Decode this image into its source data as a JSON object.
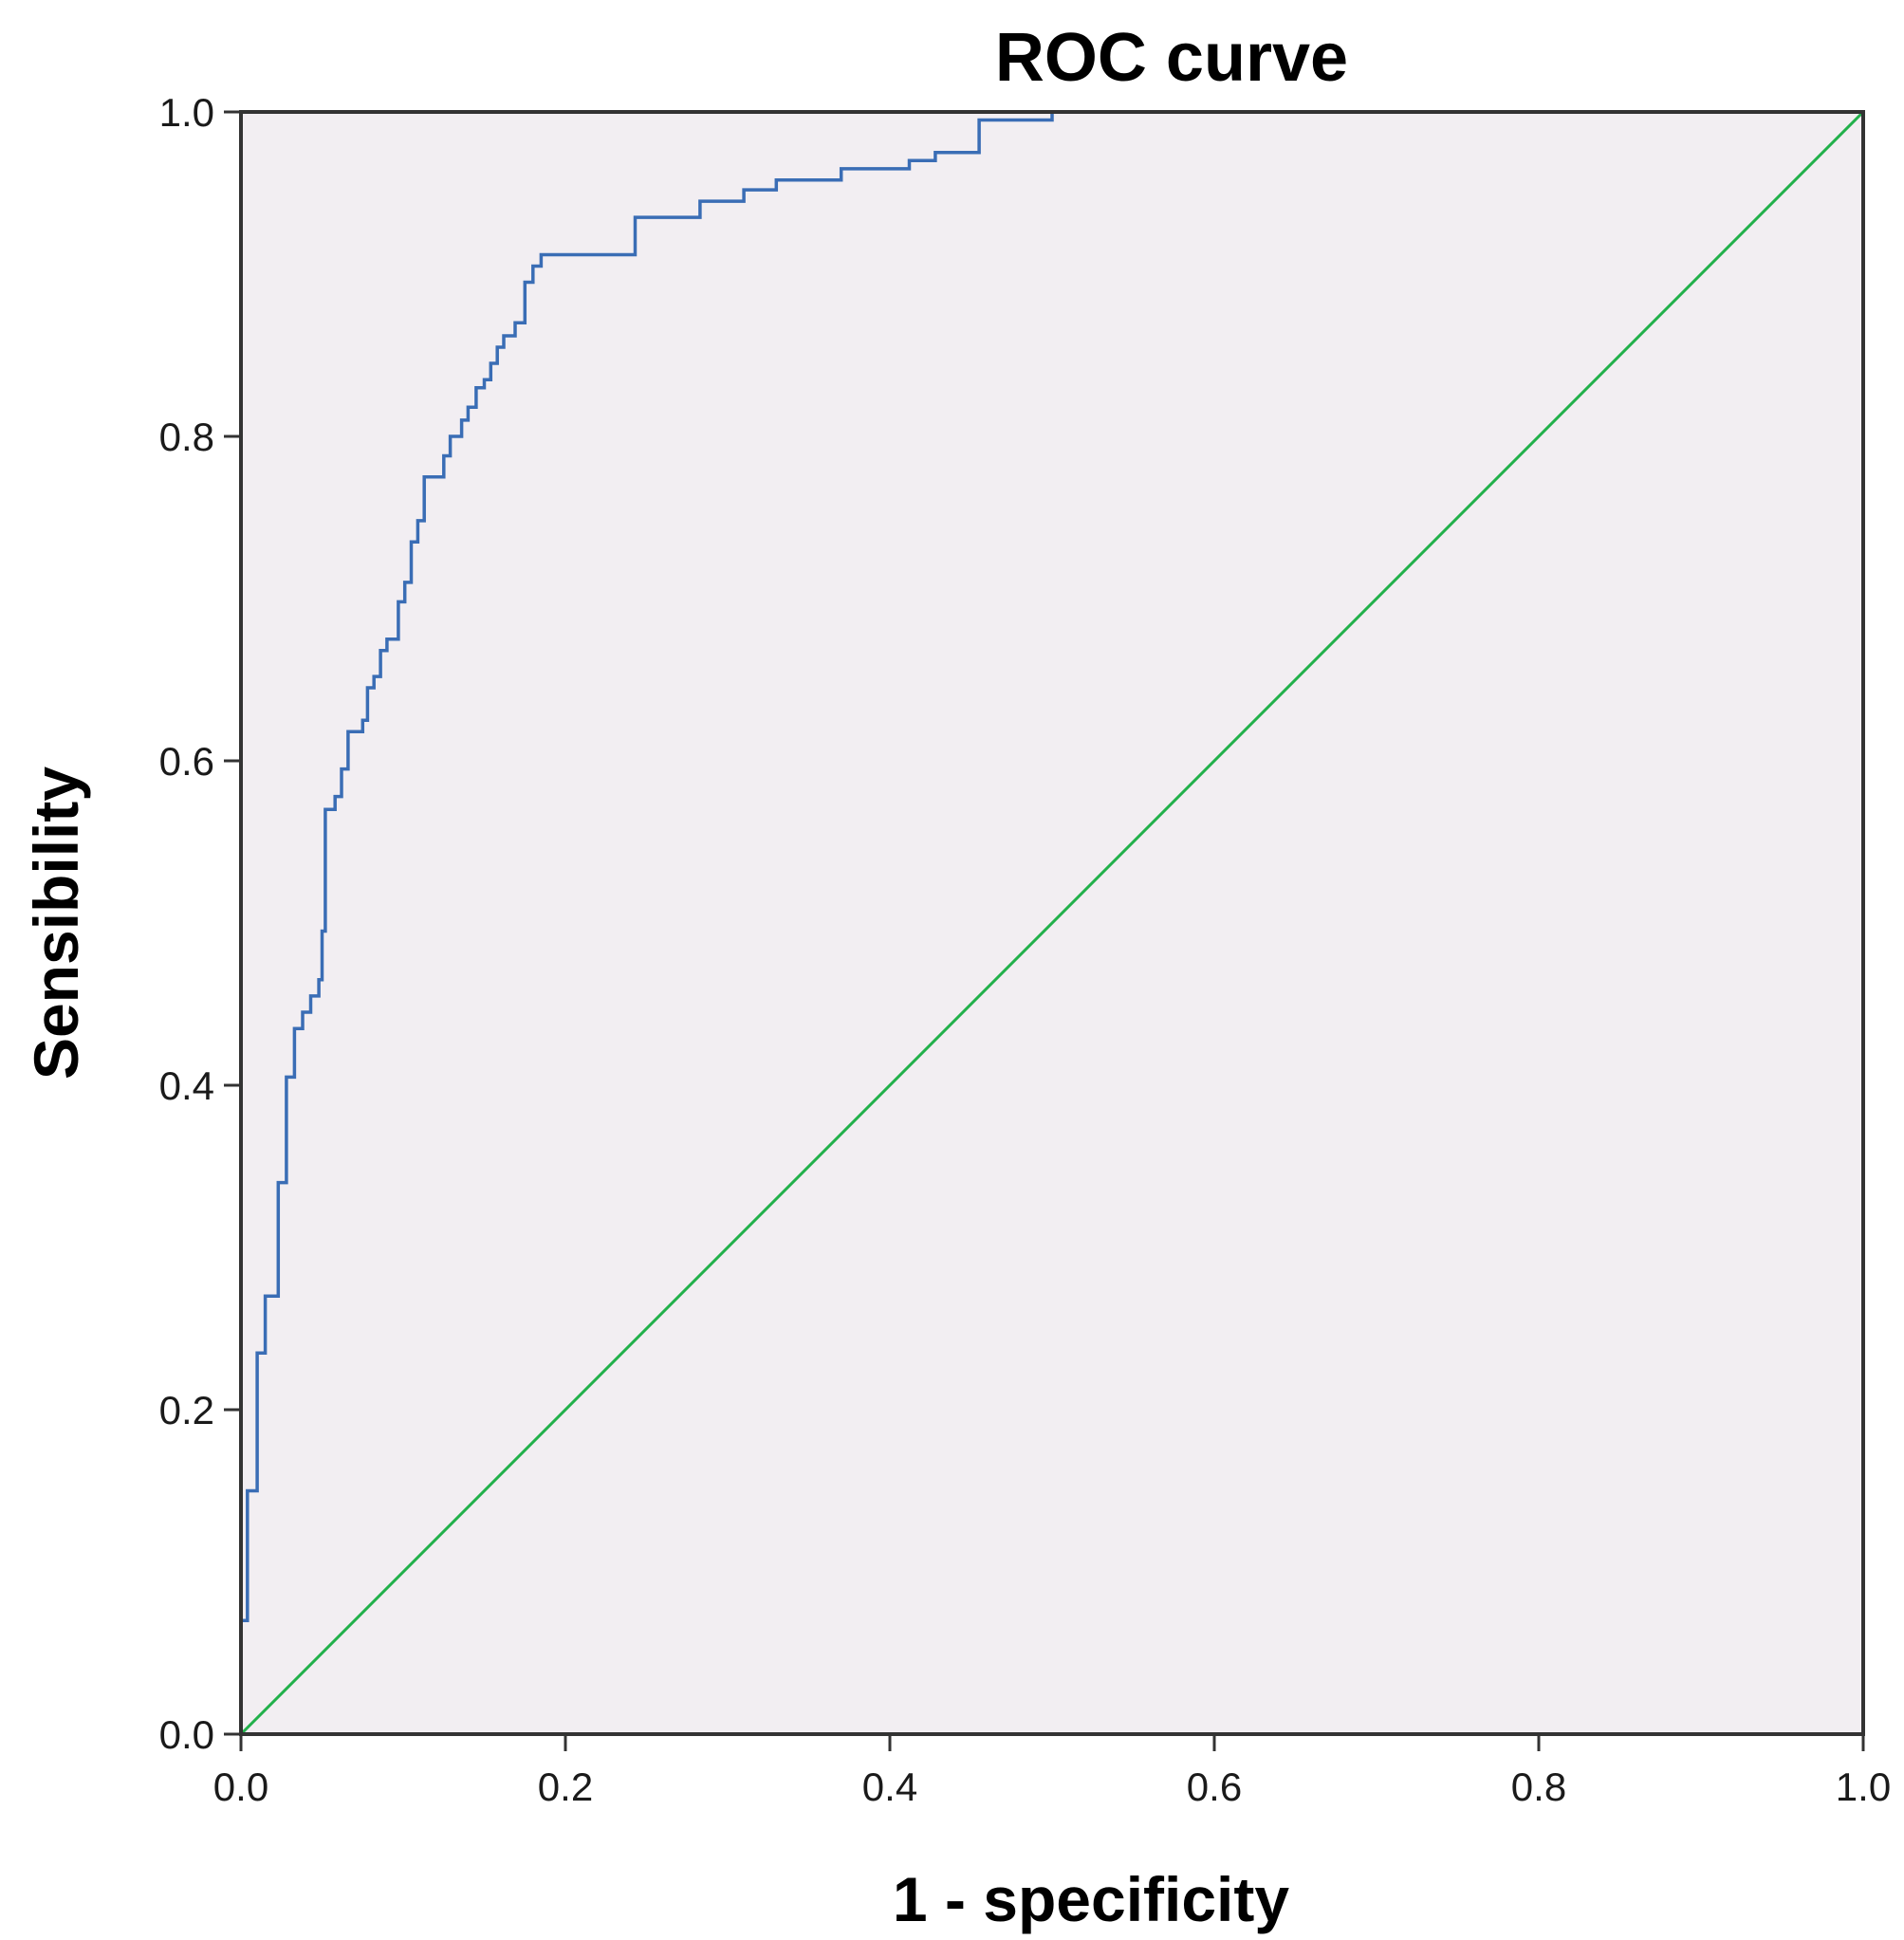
{
  "chart_data": {
    "type": "line",
    "title": "ROC curve",
    "xlabel": "1 - specificity",
    "ylabel": "Sensibility",
    "xlim": [
      0,
      1
    ],
    "ylim": [
      0,
      1
    ],
    "x_ticks": [
      "0.0",
      "0.2",
      "0.4",
      "0.6",
      "0.8",
      "1.0"
    ],
    "y_ticks": [
      "0.0",
      "0.2",
      "0.4",
      "0.6",
      "0.8",
      "1.0"
    ],
    "grid": false,
    "legend": "none",
    "colors": {
      "plot_background": "#f2eef2",
      "roc_line": "#3a6db5",
      "reference_line": "#22b04b"
    },
    "series": [
      {
        "style": "step",
        "points": [
          [
            0.0,
            0.0
          ],
          [
            0.0,
            0.07
          ],
          [
            0.004,
            0.07
          ],
          [
            0.004,
            0.15
          ],
          [
            0.01,
            0.15
          ],
          [
            0.01,
            0.235
          ],
          [
            0.015,
            0.235
          ],
          [
            0.015,
            0.27
          ],
          [
            0.023,
            0.27
          ],
          [
            0.023,
            0.34
          ],
          [
            0.028,
            0.34
          ],
          [
            0.028,
            0.405
          ],
          [
            0.033,
            0.405
          ],
          [
            0.033,
            0.435
          ],
          [
            0.038,
            0.435
          ],
          [
            0.038,
            0.445
          ],
          [
            0.043,
            0.445
          ],
          [
            0.043,
            0.455
          ],
          [
            0.048,
            0.455
          ],
          [
            0.048,
            0.465
          ],
          [
            0.05,
            0.465
          ],
          [
            0.05,
            0.495
          ],
          [
            0.052,
            0.495
          ],
          [
            0.052,
            0.57
          ],
          [
            0.058,
            0.57
          ],
          [
            0.058,
            0.578
          ],
          [
            0.062,
            0.578
          ],
          [
            0.062,
            0.595
          ],
          [
            0.066,
            0.595
          ],
          [
            0.066,
            0.618
          ],
          [
            0.075,
            0.618
          ],
          [
            0.075,
            0.625
          ],
          [
            0.078,
            0.625
          ],
          [
            0.078,
            0.645
          ],
          [
            0.082,
            0.645
          ],
          [
            0.082,
            0.652
          ],
          [
            0.086,
            0.652
          ],
          [
            0.086,
            0.668
          ],
          [
            0.09,
            0.668
          ],
          [
            0.09,
            0.675
          ],
          [
            0.097,
            0.675
          ],
          [
            0.097,
            0.698
          ],
          [
            0.101,
            0.698
          ],
          [
            0.101,
            0.71
          ],
          [
            0.105,
            0.71
          ],
          [
            0.105,
            0.735
          ],
          [
            0.109,
            0.735
          ],
          [
            0.109,
            0.748
          ],
          [
            0.113,
            0.748
          ],
          [
            0.113,
            0.775
          ],
          [
            0.125,
            0.775
          ],
          [
            0.125,
            0.788
          ],
          [
            0.129,
            0.788
          ],
          [
            0.129,
            0.8
          ],
          [
            0.136,
            0.8
          ],
          [
            0.136,
            0.81
          ],
          [
            0.14,
            0.81
          ],
          [
            0.14,
            0.818
          ],
          [
            0.145,
            0.818
          ],
          [
            0.145,
            0.83
          ],
          [
            0.15,
            0.83
          ],
          [
            0.15,
            0.835
          ],
          [
            0.154,
            0.835
          ],
          [
            0.154,
            0.845
          ],
          [
            0.158,
            0.845
          ],
          [
            0.158,
            0.855
          ],
          [
            0.162,
            0.855
          ],
          [
            0.162,
            0.862
          ],
          [
            0.169,
            0.862
          ],
          [
            0.169,
            0.87
          ],
          [
            0.175,
            0.87
          ],
          [
            0.175,
            0.895
          ],
          [
            0.18,
            0.895
          ],
          [
            0.18,
            0.905
          ],
          [
            0.185,
            0.905
          ],
          [
            0.185,
            0.912
          ],
          [
            0.243,
            0.912
          ],
          [
            0.243,
            0.935
          ],
          [
            0.283,
            0.935
          ],
          [
            0.283,
            0.945
          ],
          [
            0.31,
            0.945
          ],
          [
            0.31,
            0.952
          ],
          [
            0.33,
            0.952
          ],
          [
            0.33,
            0.958
          ],
          [
            0.37,
            0.958
          ],
          [
            0.37,
            0.965
          ],
          [
            0.412,
            0.965
          ],
          [
            0.412,
            0.97
          ],
          [
            0.428,
            0.97
          ],
          [
            0.428,
            0.975
          ],
          [
            0.455,
            0.975
          ],
          [
            0.455,
            0.995
          ],
          [
            0.5,
            0.995
          ],
          [
            0.5,
            1.0
          ],
          [
            1.0,
            1.0
          ]
        ]
      },
      {
        "style": "reference",
        "points": [
          [
            0,
            0
          ],
          [
            1,
            1
          ]
        ]
      }
    ]
  }
}
